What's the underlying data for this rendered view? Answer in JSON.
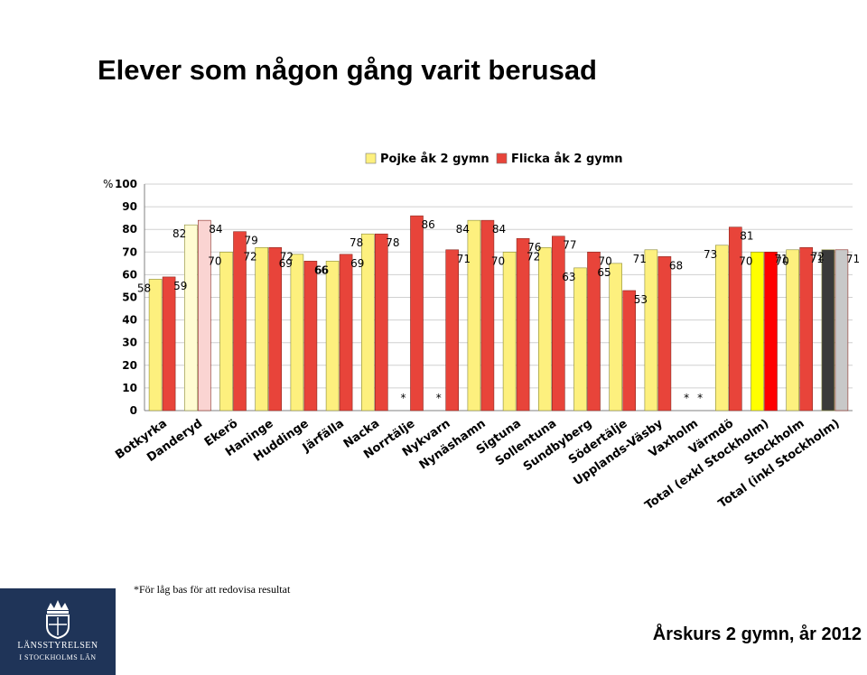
{
  "title": "Elever som någon gång varit berusad",
  "footnote": "*För låg bas för att redovisa resultat",
  "caption": "Årskurs 2 gymn, år 2012",
  "logo": {
    "line1": "LÄNSSTYRELSEN",
    "line2": "I STOCKHOLMS LÄN",
    "crest": "crown-crest-icon"
  },
  "chart_data": {
    "type": "bar",
    "ylabel": "%",
    "ylim": [
      0,
      100
    ],
    "yticks": [
      0,
      10,
      20,
      30,
      40,
      50,
      60,
      70,
      80,
      90,
      100
    ],
    "grid": true,
    "legend": "top",
    "categories": [
      "Botkyrka",
      "Danderyd",
      "Ekerö",
      "Haninge",
      "Huddinge",
      "Järfälla",
      "Nacka",
      "Norrtälje",
      "Nykvarn",
      "Nynäshamn",
      "Sigtuna",
      "Sollentuna",
      "Sundbyberg",
      "Södertälje",
      "Upplands-Väsby",
      "Vaxholm",
      "Värmdö",
      "Total (exkl Stockholm)",
      "Stockholm",
      "Total (inkl Stockholm)"
    ],
    "series": [
      {
        "name": "Pojke åk 2 gymn",
        "color": "#fdf07e",
        "values": [
          58,
          82,
          70,
          72,
          69,
          66,
          78,
          null,
          null,
          84,
          70,
          72,
          63,
          65,
          71,
          null,
          73,
          70,
          71,
          71
        ]
      },
      {
        "name": "Flicka åk 2 gymn",
        "color": "#e8443a",
        "values": [
          59,
          84,
          79,
          72,
          66,
          69,
          78,
          86,
          71,
          84,
          76,
          77,
          70,
          53,
          68,
          null,
          81,
          70,
          72,
          71
        ]
      }
    ],
    "data_labels": {
      "boys": [
        "58",
        "82",
        "70",
        "72",
        "69",
        "66",
        "78",
        "*",
        "*",
        "84",
        "70",
        "72",
        "63",
        "65",
        "71",
        "*",
        "73",
        "70",
        "71",
        "71"
      ],
      "girls": [
        "59",
        "84",
        "79",
        "72",
        "66",
        "69",
        "78",
        "86",
        "71",
        "84",
        "76",
        "77",
        "70",
        "53",
        "68",
        "*",
        "81",
        "70",
        "72",
        "71"
      ]
    },
    "highlight_colors": {
      "danderyd": [
        "#fffcd2",
        "#fad4d2"
      ],
      "total_exkl": [
        "#ffff00",
        "#ff0000"
      ],
      "total_inkl": [
        "#3a3a3a",
        "#c8c8c8"
      ]
    }
  }
}
